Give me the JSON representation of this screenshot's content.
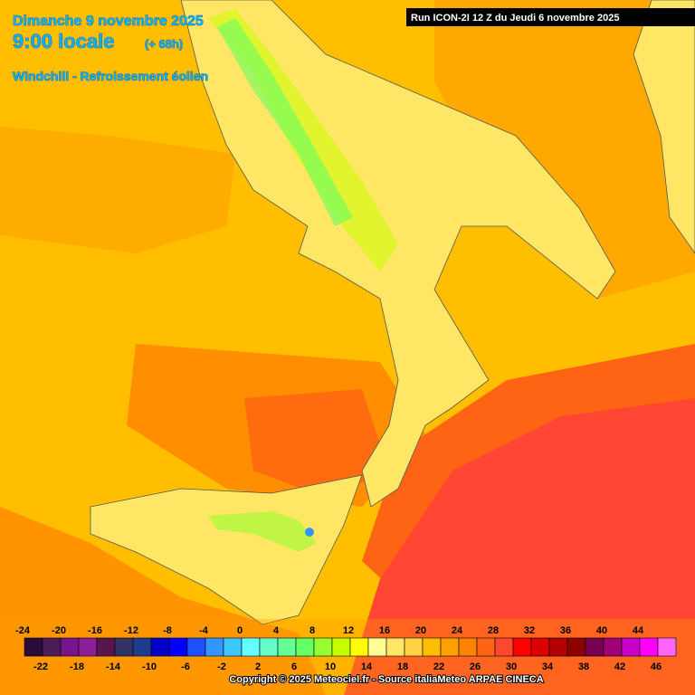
{
  "header": {
    "date": "Dimanche 9 novembre 2025",
    "time": "9:00 locale",
    "lead": "(+ 68h)",
    "subtitle": "Windchill - Refroissement éolien",
    "run": "Run ICON-2I 12 Z du Jeudi 6 novembre 2025"
  },
  "legend": {
    "values": [
      -24,
      -22,
      -20,
      -18,
      -16,
      -14,
      -12,
      -10,
      -8,
      -6,
      -4,
      -2,
      0,
      2,
      4,
      6,
      8,
      10,
      12,
      14,
      16,
      18,
      20,
      22,
      24,
      26,
      28,
      30,
      32,
      34,
      36,
      38,
      40,
      42,
      44,
      46
    ],
    "colors": [
      "#2d0a3c",
      "#4b1e5a",
      "#78148c",
      "#8c1e96",
      "#5a1450",
      "#323264",
      "#1e3c8c",
      "#0000c8",
      "#0000ff",
      "#1e50ff",
      "#3296ff",
      "#3cc8ff",
      "#64ffff",
      "#64ffc8",
      "#64ff96",
      "#64ff64",
      "#96ff32",
      "#c8ff00",
      "#ffff00",
      "#ffff96",
      "#ffe664",
      "#ffd246",
      "#ffbe00",
      "#ffa000",
      "#ff8200",
      "#ff6414",
      "#ff4632",
      "#ff0000",
      "#dc0000",
      "#b40000",
      "#8c0000",
      "#780050",
      "#a00078",
      "#c800c8",
      "#ff00ff",
      "#ff64ff"
    ]
  },
  "footer": {
    "copyright": "Copyright © 2025 Meteociel.fr - Source italiaMeteo ARPAE CINECA"
  }
}
